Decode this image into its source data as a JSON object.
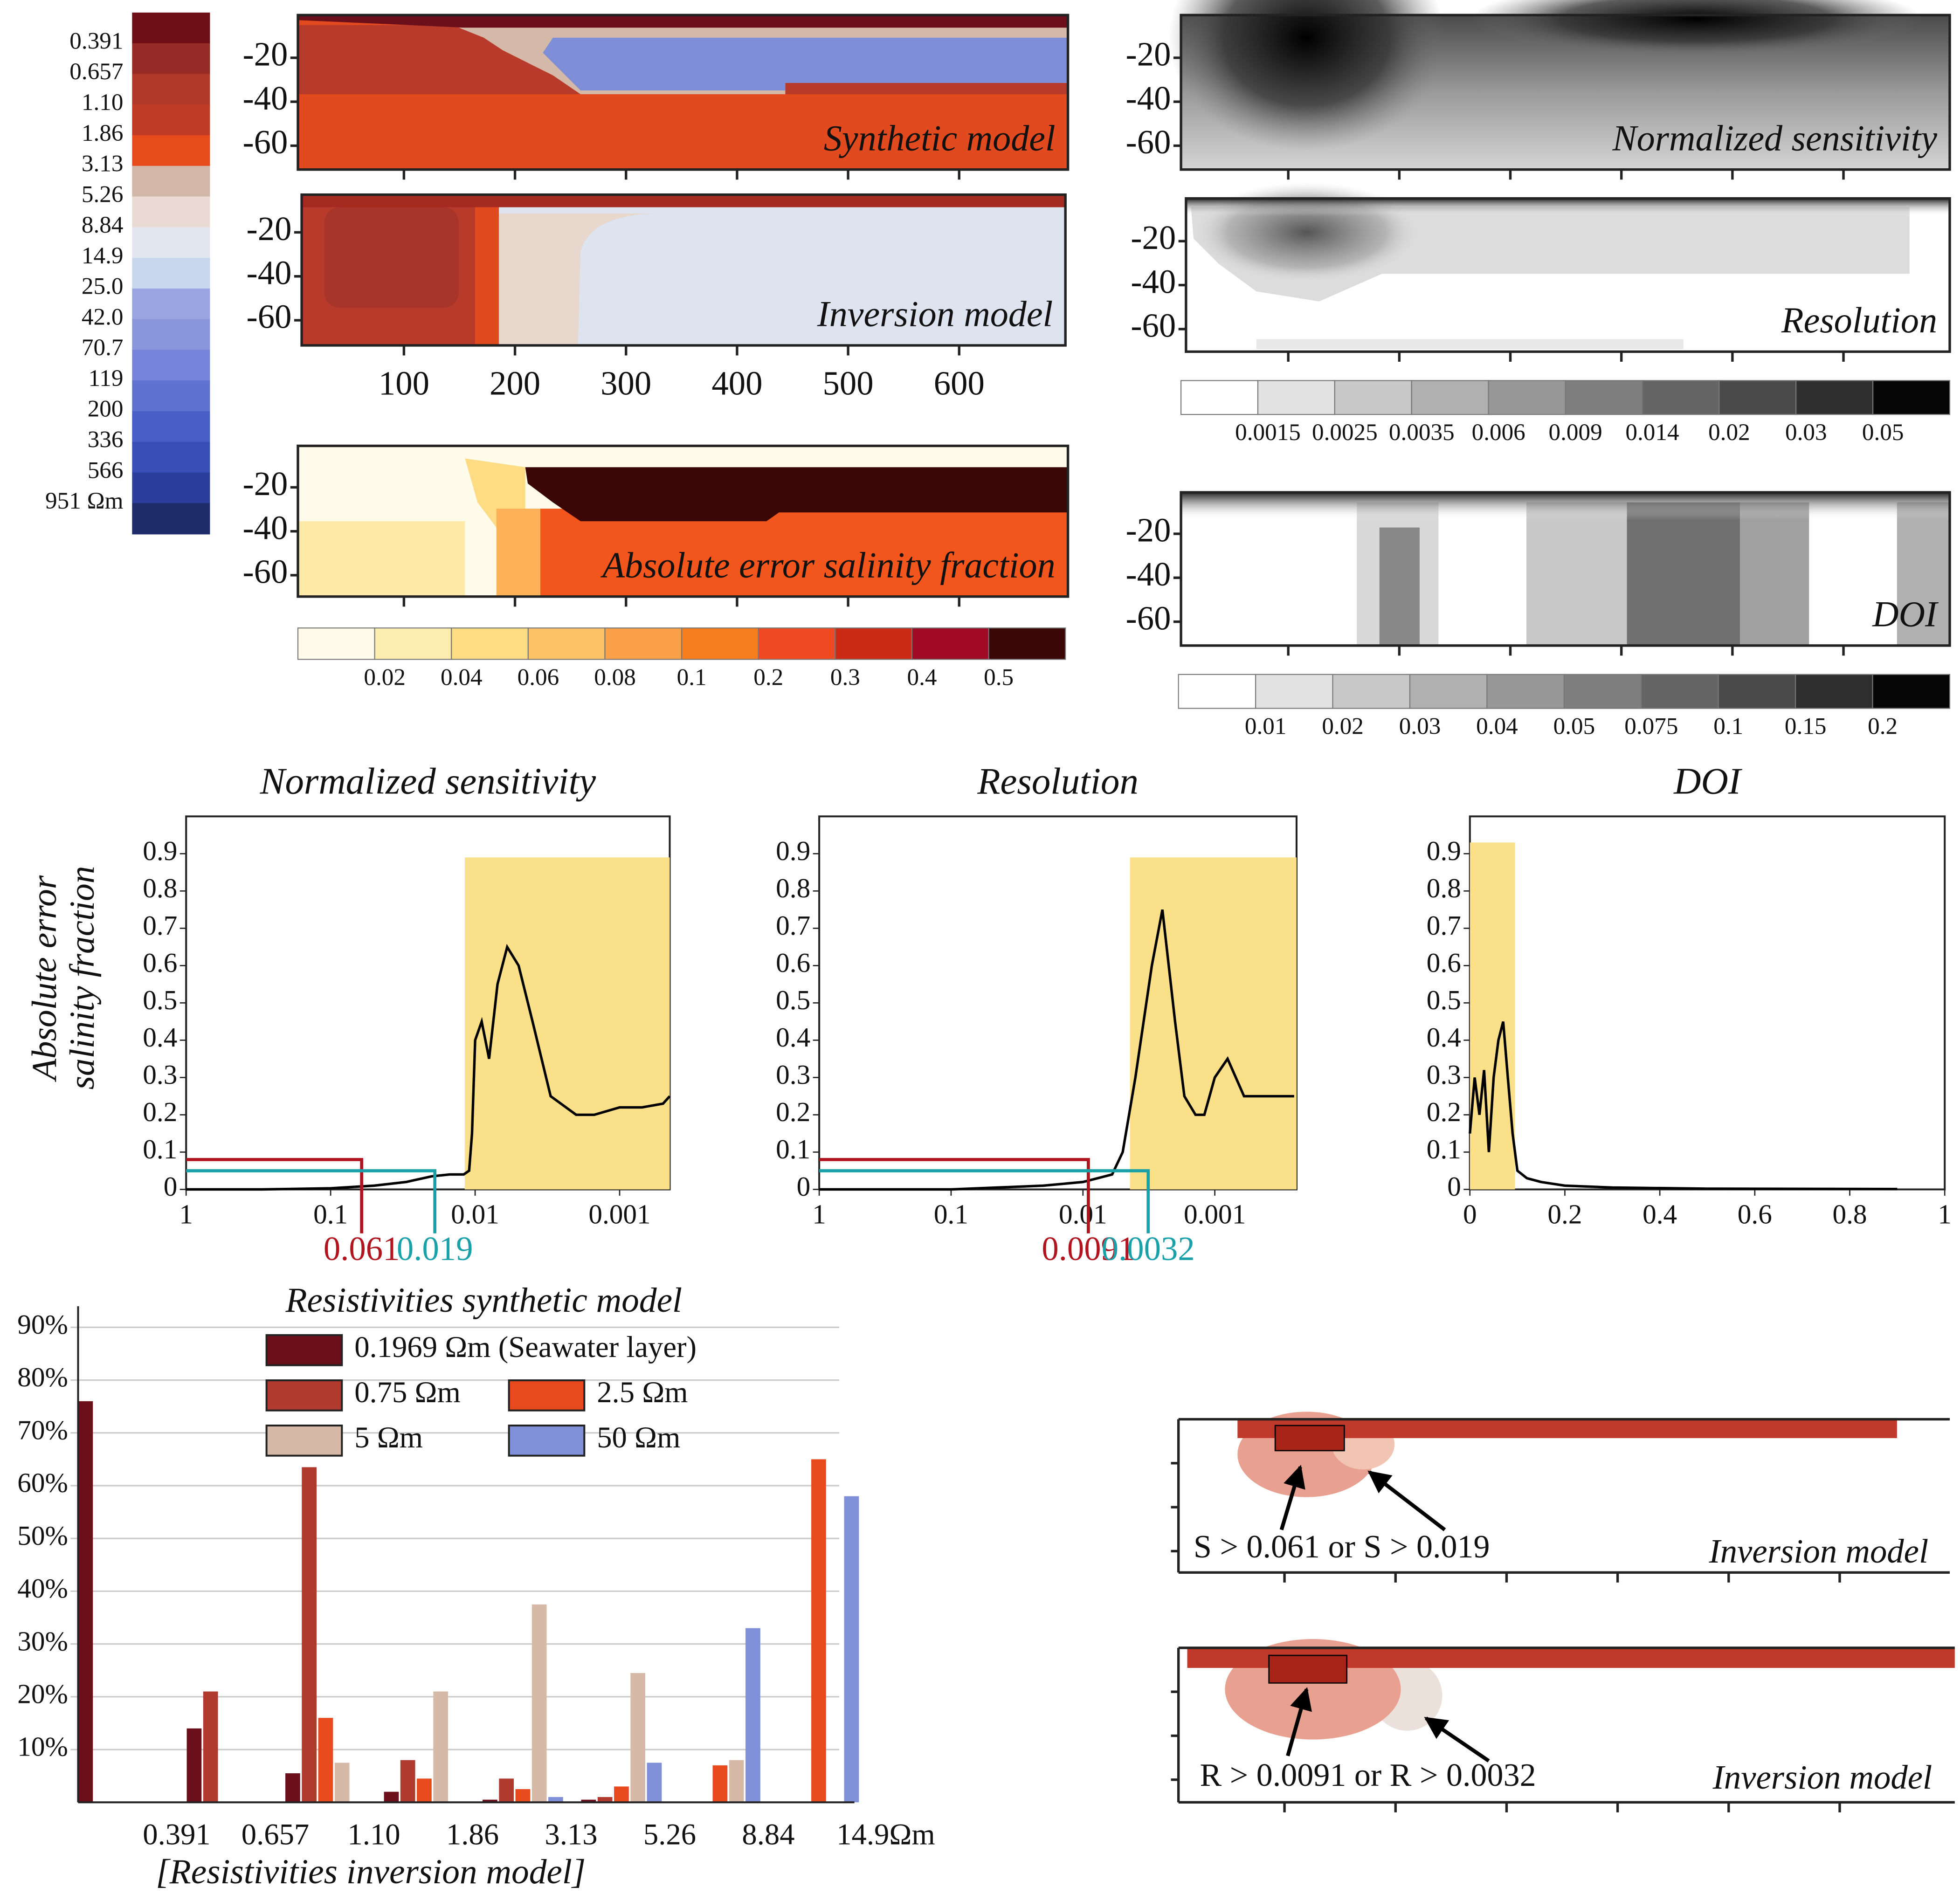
{
  "resistivity_colorbar": {
    "labels": [
      0.391,
      0.657,
      {
        "value": 1.1,
        "label": "1.10"
      },
      1.86,
      3.13,
      5.26,
      8.84,
      14.9,
      {
        "value": 25,
        "label": "25.0"
      },
      {
        "value": 42,
        "label": "42.0"
      },
      70.7,
      119,
      200,
      336,
      566,
      {
        "value": 951,
        "label": "951 Ωm"
      }
    ],
    "colors": [
      "#6e0f17",
      "#952a26",
      "#b03828",
      "#c03b26",
      "#e64b1c",
      "#d2b6a8",
      "#e9dbd3",
      "#e2e6f0",
      "#c8d6ee",
      "#9aa4e0",
      "#8896dc",
      "#7584d8",
      "#5f72d0",
      "#4a5ec8",
      "#3a4eb8",
      "#2c3e9c",
      "#1f2c6c"
    ]
  },
  "maps": {
    "depth_ticks": [
      -20,
      -40,
      -60
    ],
    "distance_ticks": [
      100,
      200,
      300,
      400,
      500,
      600
    ],
    "panels": [
      "Synthetic model",
      "Inversion model",
      "Absolute error salinity fraction",
      "Normalized sensitivity",
      "Resolution",
      "DOI"
    ],
    "bottom_panels": [
      {
        "title": "Inversion model",
        "annotation": "S > 0.061 or S > 0.019"
      },
      {
        "title": "Inversion model",
        "annotation": "R > 0.0091 or R > 0.0032"
      }
    ]
  },
  "error_colorbar": {
    "labels": [
      0.02,
      0.04,
      0.06,
      0.08,
      0.1,
      0.2,
      0.3,
      0.4,
      0.5
    ],
    "colors": [
      "#fffbea",
      "#fdeeb0",
      "#fddc84",
      "#fcc266",
      "#f9a048",
      "#f67c1e",
      "#f04a22",
      "#cc2a14",
      "#a00a24",
      "#3a0606"
    ]
  },
  "sensitivity_colorbar": {
    "labels": [
      0.0015,
      0.0025,
      0.0035,
      0.006,
      0.009,
      0.014,
      0.02,
      0.03,
      0.05
    ],
    "colors": [
      "#ffffff",
      "#e2e2e2",
      "#c8c8c8",
      "#b0b0b0",
      "#979797",
      "#7e7e7e",
      "#656565",
      "#4a4a4a",
      "#2e2e2e",
      "#060606"
    ]
  },
  "doi_colorbar": {
    "labels": [
      0.01,
      0.02,
      0.03,
      0.04,
      0.05,
      0.075,
      0.1,
      0.15,
      0.2
    ],
    "colors": [
      "#ffffff",
      "#e2e2e2",
      "#c8c8c8",
      "#b0b0b0",
      "#979797",
      "#7e7e7e",
      "#656565",
      "#4a4a4a",
      "#2e2e2e",
      "#060606"
    ]
  },
  "chart_data": [
    {
      "type": "line",
      "title": "Normalized sensitivity",
      "ylabel": [
        "Absolute error",
        "salinity fraction"
      ],
      "xscale": "log",
      "xlim": [
        1,
        0.00045
      ],
      "xticks": [
        1,
        0.1,
        0.01,
        0.001
      ],
      "ylim": [
        0,
        1
      ],
      "yticks": [
        0,
        0.1,
        0.2,
        0.3,
        0.4,
        0.5,
        0.6,
        0.7,
        0.8,
        0.9
      ],
      "band": {
        "x": [
          0.0118,
          0.00045
        ],
        "y": [
          0,
          0.89
        ],
        "color": "#fbe08a"
      },
      "color": "#000000",
      "x": [
        1,
        0.3,
        0.1,
        0.05,
        0.03,
        0.02,
        0.015,
        0.012,
        0.011,
        0.0105,
        0.01,
        0.009,
        0.008,
        0.007,
        0.006,
        0.005,
        0.004,
        0.003,
        0.002,
        0.0015,
        0.001,
        0.0007,
        0.0005,
        0.00045
      ],
      "values": [
        0,
        0,
        0.003,
        0.01,
        0.02,
        0.035,
        0.04,
        0.04,
        0.05,
        0.15,
        0.4,
        0.45,
        0.35,
        0.55,
        0.65,
        0.6,
        0.45,
        0.25,
        0.2,
        0.2,
        0.22,
        0.22,
        0.23,
        0.25
      ],
      "thresholds": [
        {
          "value": 0.061,
          "level": 0.08,
          "color": "#b0141e"
        },
        {
          "value": 0.019,
          "level": 0.05,
          "color": "#1aa0a8"
        }
      ]
    },
    {
      "type": "line",
      "title": "Resolution",
      "xscale": "log",
      "xlim": [
        1,
        0.00024
      ],
      "xticks": [
        1,
        0.1,
        0.01,
        0.001
      ],
      "ylim": [
        0,
        1
      ],
      "yticks": [
        0,
        0.1,
        0.2,
        0.3,
        0.4,
        0.5,
        0.6,
        0.7,
        0.8,
        0.9
      ],
      "band": {
        "x": [
          0.0044,
          0.00024
        ],
        "y": [
          0,
          0.89
        ],
        "color": "#fbe08a"
      },
      "color": "#000000",
      "x": [
        1,
        0.1,
        0.02,
        0.01,
        0.006,
        0.005,
        0.004,
        0.003,
        0.0025,
        0.002,
        0.0017,
        0.0014,
        0.0012,
        0.001,
        0.0008,
        0.0006,
        0.0004,
        0.00025
      ],
      "values": [
        0,
        0,
        0.01,
        0.02,
        0.04,
        0.1,
        0.3,
        0.6,
        0.75,
        0.45,
        0.25,
        0.2,
        0.2,
        0.3,
        0.35,
        0.25,
        0.25,
        0.25
      ],
      "thresholds": [
        {
          "value": 0.0091,
          "level": 0.08,
          "color": "#b0141e"
        },
        {
          "value": 0.0032,
          "level": 0.05,
          "color": "#1aa0a8"
        }
      ]
    },
    {
      "type": "line",
      "title": "DOI",
      "xscale": "linear",
      "xlim": [
        0,
        1
      ],
      "xticks": [
        0,
        0.2,
        0.4,
        0.6,
        0.8,
        1
      ],
      "ylim": [
        0,
        1
      ],
      "yticks": [
        0,
        0.1,
        0.2,
        0.3,
        0.4,
        0.5,
        0.6,
        0.7,
        0.8,
        0.9
      ],
      "band": {
        "x": [
          0,
          0.095
        ],
        "y": [
          0,
          0.93
        ],
        "color": "#fbe08a"
      },
      "color": "#000000",
      "x": [
        0,
        0.01,
        0.02,
        0.03,
        0.04,
        0.05,
        0.06,
        0.07,
        0.08,
        0.09,
        0.1,
        0.12,
        0.15,
        0.2,
        0.3,
        0.5,
        0.9
      ],
      "values": [
        0.15,
        0.3,
        0.2,
        0.32,
        0.1,
        0.3,
        0.4,
        0.45,
        0.3,
        0.15,
        0.05,
        0.03,
        0.02,
        0.01,
        0.005,
        0.002,
        0.001
      ]
    },
    {
      "type": "bar",
      "legend_title": "Resistivities synthetic model",
      "xlabel": "[Resistivities inversion model]",
      "categories": [
        "0.391",
        "0.657",
        "1.10",
        "1.86",
        "3.13",
        "5.26",
        "8.84",
        "14.9Ωm"
      ],
      "ylim": [
        0,
        94
      ],
      "yticks": [
        {
          "value": 10,
          "label": "10%"
        },
        {
          "value": 20,
          "label": "20%"
        },
        {
          "value": 30,
          "label": "30%"
        },
        {
          "value": 40,
          "label": "40%"
        },
        {
          "value": 50,
          "label": "50%"
        },
        {
          "value": 60,
          "label": "60%"
        },
        {
          "value": 70,
          "label": "70%"
        },
        {
          "value": 80,
          "label": "80%"
        },
        {
          "value": 90,
          "label": "90%"
        }
      ],
      "grid": true,
      "series": [
        {
          "name": "0.1969 Ωm (Seawater layer)",
          "color": "#6b0f1a",
          "values": [
            76,
            14,
            5.5,
            2,
            0.5,
            0.5,
            0,
            0
          ]
        },
        {
          "name": "0.75 Ωm",
          "color": "#b03a2e",
          "values": [
            0,
            21,
            63.5,
            8,
            4.5,
            1,
            0,
            0
          ]
        },
        {
          "name": "2.5 Ωm",
          "color": "#e8491d",
          "values": [
            0,
            0,
            16,
            4.5,
            2.5,
            3,
            7,
            65
          ]
        },
        {
          "name": "5 Ωm",
          "color": "#d7b9a8",
          "values": [
            0,
            0,
            7.5,
            21,
            37.5,
            24.5,
            8,
            0
          ]
        },
        {
          "name": "50 Ωm",
          "color": "#8090d8",
          "values": [
            0,
            0,
            0,
            0,
            1,
            7.5,
            33,
            58
          ]
        }
      ]
    }
  ]
}
